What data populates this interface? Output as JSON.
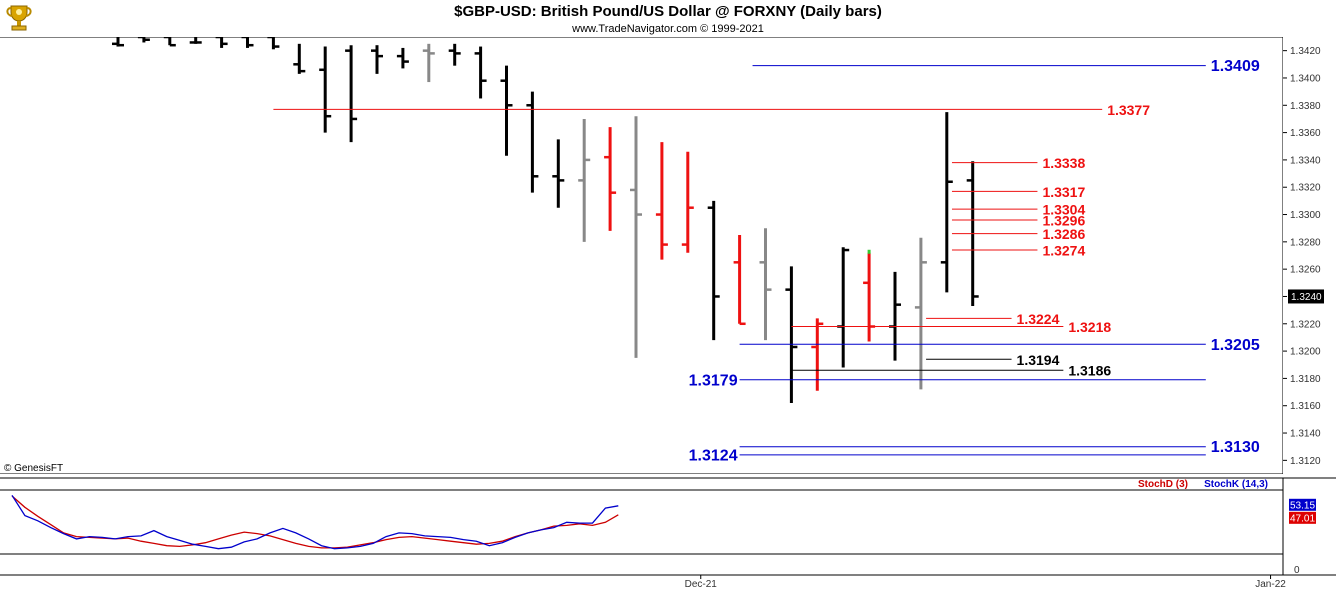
{
  "header": {
    "title": "$GBP-USD:  British Pound/US Dollar @ FORXNY  (Daily bars)",
    "subtitle": "www.TradeNavigator.com © 1999-2021",
    "logo_icon": "trophy-logo-icon"
  },
  "footer": {
    "copyright": "© GenesisFT"
  },
  "colors": {
    "up_bar": "#000000",
    "down_bar": "#ee1111",
    "neutral_bar": "#888888",
    "blue_level": "#0000cc",
    "red_level": "#ee1111",
    "black_level": "#000000",
    "stoch_d": "#cc0000",
    "stoch_k": "#0000cc"
  },
  "chart_data": [
    {
      "type": "ohlc",
      "symbol": "$GBP-USD",
      "ylim": [
        1.311,
        1.343
      ],
      "y_ticks": [
        1.312,
        1.314,
        1.316,
        1.318,
        1.32,
        1.322,
        1.324,
        1.326,
        1.328,
        1.33,
        1.332,
        1.334,
        1.336,
        1.338,
        1.34,
        1.342
      ],
      "x_labels": [
        {
          "label": "Dec-21",
          "bar": 22.5
        },
        {
          "label": "Jan-22",
          "bar": 44.5
        }
      ],
      "current_price": "1.3240",
      "bars": [
        {
          "o": 1.3425,
          "h": 1.344,
          "l": 1.3423,
          "c": 1.3424,
          "color": "black"
        },
        {
          "o": 1.343,
          "h": 1.344,
          "l": 1.3426,
          "c": 1.3428,
          "color": "black"
        },
        {
          "o": 1.343,
          "h": 1.344,
          "l": 1.3424,
          "c": 1.3424,
          "color": "black"
        },
        {
          "o": 1.3426,
          "h": 1.344,
          "l": 1.3425,
          "c": 1.3426,
          "color": "black"
        },
        {
          "o": 1.343,
          "h": 1.344,
          "l": 1.3422,
          "c": 1.3425,
          "color": "black"
        },
        {
          "o": 1.343,
          "h": 1.344,
          "l": 1.3422,
          "c": 1.3424,
          "color": "black"
        },
        {
          "o": 1.343,
          "h": 1.344,
          "l": 1.3421,
          "c": 1.3423,
          "color": "black"
        },
        {
          "o": 1.341,
          "h": 1.3425,
          "l": 1.3403,
          "c": 1.3405,
          "color": "black"
        },
        {
          "o": 1.3406,
          "h": 1.3423,
          "l": 1.336,
          "c": 1.3372,
          "color": "black"
        },
        {
          "o": 1.342,
          "h": 1.3424,
          "l": 1.3353,
          "c": 1.337,
          "color": "black"
        },
        {
          "o": 1.342,
          "h": 1.3424,
          "l": 1.3403,
          "c": 1.3416,
          "color": "black"
        },
        {
          "o": 1.3416,
          "h": 1.3422,
          "l": 1.3407,
          "c": 1.3412,
          "color": "black"
        },
        {
          "o": 1.342,
          "h": 1.3425,
          "l": 1.3397,
          "c": 1.3418,
          "color": "gray"
        },
        {
          "o": 1.342,
          "h": 1.3425,
          "l": 1.3409,
          "c": 1.3418,
          "color": "black"
        },
        {
          "o": 1.3418,
          "h": 1.3423,
          "l": 1.3385,
          "c": 1.3398,
          "color": "black"
        },
        {
          "o": 1.3398,
          "h": 1.3409,
          "l": 1.3343,
          "c": 1.338,
          "color": "black"
        },
        {
          "o": 1.338,
          "h": 1.339,
          "l": 1.3316,
          "c": 1.3328,
          "color": "black"
        },
        {
          "o": 1.3328,
          "h": 1.3355,
          "l": 1.3305,
          "c": 1.3325,
          "color": "black"
        },
        {
          "o": 1.3325,
          "h": 1.337,
          "l": 1.328,
          "c": 1.334,
          "color": "gray"
        },
        {
          "o": 1.3342,
          "h": 1.3364,
          "l": 1.3288,
          "c": 1.3316,
          "color": "red"
        },
        {
          "o": 1.3318,
          "h": 1.3372,
          "l": 1.3195,
          "c": 1.33,
          "color": "gray"
        },
        {
          "o": 1.33,
          "h": 1.3353,
          "l": 1.3267,
          "c": 1.3278,
          "color": "red"
        },
        {
          "o": 1.3278,
          "h": 1.3346,
          "l": 1.3272,
          "c": 1.3305,
          "color": "red"
        },
        {
          "o": 1.3305,
          "h": 1.331,
          "l": 1.3208,
          "c": 1.324,
          "color": "black"
        },
        {
          "o": 1.3265,
          "h": 1.3285,
          "l": 1.322,
          "c": 1.322,
          "color": "red"
        },
        {
          "o": 1.3265,
          "h": 1.329,
          "l": 1.3208,
          "c": 1.3245,
          "color": "gray"
        },
        {
          "o": 1.3245,
          "h": 1.3262,
          "l": 1.3162,
          "c": 1.3203,
          "color": "black"
        },
        {
          "o": 1.3203,
          "h": 1.3224,
          "l": 1.3171,
          "c": 1.322,
          "color": "red"
        },
        {
          "o": 1.3218,
          "h": 1.3276,
          "l": 1.3188,
          "c": 1.3274,
          "color": "black"
        },
        {
          "o": 1.325,
          "h": 1.3272,
          "l": 1.3207,
          "c": 1.3218,
          "color": "red"
        },
        {
          "o": 1.3218,
          "h": 1.3258,
          "l": 1.3193,
          "c": 1.3234,
          "color": "black"
        },
        {
          "o": 1.3232,
          "h": 1.3283,
          "l": 1.3172,
          "c": 1.3265,
          "color": "gray"
        },
        {
          "o": 1.3265,
          "h": 1.3375,
          "l": 1.3243,
          "c": 1.3324,
          "color": "black"
        },
        {
          "o": 1.3325,
          "h": 1.3339,
          "l": 1.3233,
          "c": 1.324,
          "color": "black"
        }
      ],
      "levels": [
        {
          "value": "1.3409",
          "color": "blue",
          "from_bar": 24.5,
          "to_bar": 42.0
        },
        {
          "value": "1.3377",
          "color": "red",
          "from_bar": 6.0,
          "to_bar": 38.0
        },
        {
          "value": "1.3338",
          "color": "red",
          "from_bar": 32.2,
          "to_bar": 35.5
        },
        {
          "value": "1.3317",
          "color": "red",
          "from_bar": 32.2,
          "to_bar": 35.5
        },
        {
          "value": "1.3304",
          "color": "red",
          "from_bar": 32.2,
          "to_bar": 35.5
        },
        {
          "value": "1.3296",
          "color": "red",
          "from_bar": 32.2,
          "to_bar": 35.5
        },
        {
          "value": "1.3286",
          "color": "red",
          "from_bar": 32.2,
          "to_bar": 35.5
        },
        {
          "value": "1.3274",
          "color": "red",
          "from_bar": 32.2,
          "to_bar": 35.5
        },
        {
          "value": "1.3224",
          "color": "red",
          "from_bar": 31.2,
          "to_bar": 34.5
        },
        {
          "value": "1.3218",
          "color": "red",
          "from_bar": 26.0,
          "to_bar": 36.5
        },
        {
          "value": "1.3205",
          "color": "blue",
          "from_bar": 24.0,
          "to_bar": 42.0
        },
        {
          "value": "1.3194",
          "color": "black",
          "from_bar": 31.2,
          "to_bar": 34.5
        },
        {
          "value": "1.3186",
          "color": "black",
          "from_bar": 26.0,
          "to_bar": 36.5
        },
        {
          "value": "1.3179",
          "color": "blue",
          "from_bar": 24.0,
          "to_bar": 42.0
        },
        {
          "value": "1.3130",
          "color": "blue",
          "from_bar": 24.0,
          "to_bar": 42.0
        },
        {
          "value": "1.3124",
          "color": "blue",
          "from_bar": 24.0,
          "to_bar": 42.0
        }
      ]
    },
    {
      "type": "line",
      "name": "Stochastic",
      "legend": [
        "StochD (3)",
        "StochK (14,3)"
      ],
      "ylim": [
        -8,
        105
      ],
      "y_ticks": [
        0
      ],
      "value_labels": [
        "53.15",
        "47.01"
      ],
      "series": [
        {
          "name": "StochD (3)",
          "color": "red",
          "values": [
            97,
            82,
            70,
            59,
            48,
            43,
            42,
            41,
            40,
            41,
            37,
            34,
            31,
            30,
            32,
            35,
            40,
            45,
            49,
            47,
            44,
            39,
            34,
            30,
            28,
            28,
            29,
            32,
            35,
            39,
            42,
            43,
            41,
            39,
            37,
            35,
            33,
            34,
            37,
            43,
            48,
            52,
            57,
            58,
            60,
            58,
            62,
            72
          ]
        },
        {
          "name": "StochK (14,3)",
          "color": "blue",
          "values": [
            98,
            71,
            64,
            55,
            47,
            40,
            43,
            42,
            40,
            43,
            44,
            51,
            43,
            38,
            33,
            30,
            27,
            29,
            36,
            40,
            48,
            54,
            48,
            40,
            31,
            27,
            28,
            30,
            34,
            43,
            48,
            47,
            44,
            43,
            42,
            39,
            37,
            31,
            35,
            42,
            48,
            52,
            55,
            62,
            61,
            61,
            81,
            84
          ]
        }
      ]
    }
  ]
}
